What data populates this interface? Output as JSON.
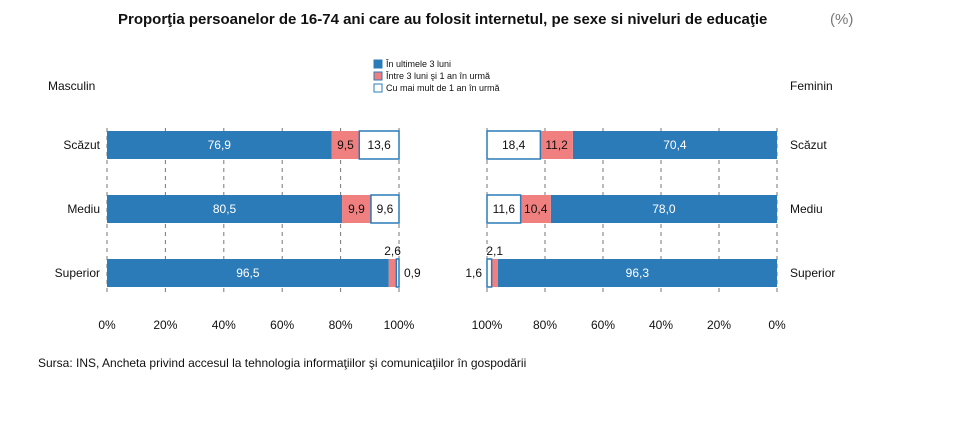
{
  "title": "Proporţia persoanelor de 16-74 ani care au folosit internetul, pe sexe si niveluri de educaţie",
  "unit": "(%)",
  "source": "Sursa: INS, Ancheta privind accesul la tehnologia informaţiilor şi comunicaţiilor în gospodării",
  "colors": {
    "last3": "#2b7bb9",
    "between": "#f07f7f",
    "over1": "#ffffff",
    "border": "#2b7bb9"
  },
  "chart_data": {
    "type": "bar",
    "orientation": "horizontal",
    "stacked": true,
    "title": "Proporţia persoanelor de 16-74 ani care au folosit internetul, pe sexe si niveluri de educaţie",
    "unit": "(%)",
    "categories": [
      "Scăzut",
      "Mediu",
      "Superior"
    ],
    "legend": {
      "placement": "top-center",
      "items": [
        "În ultimele 3 luni",
        "Între 3 luni şi 1 an în urmă",
        "Cu mai mult de 1 an în urmă"
      ]
    },
    "panels": [
      {
        "label": "Masculin",
        "direction": "left-to-right",
        "ticks": [
          "0%",
          "20%",
          "40%",
          "60%",
          "80%",
          "100%"
        ],
        "xlim": [
          0,
          100
        ],
        "series": [
          {
            "name": "În ultimele 3 luni",
            "values": [
              76.9,
              80.5,
              96.5
            ],
            "labels": [
              "76,9",
              "80,5",
              "96,5"
            ]
          },
          {
            "name": "Între 3 luni şi 1 an în urmă",
            "values": [
              9.5,
              9.9,
              2.6
            ],
            "labels": [
              "9,5",
              "9,9",
              "2,6"
            ]
          },
          {
            "name": "Cu mai mult de 1 an în urmă",
            "values": [
              13.6,
              9.6,
              0.9
            ],
            "labels": [
              "13,6",
              "9,6",
              "0,9"
            ]
          }
        ]
      },
      {
        "label": "Feminin",
        "direction": "right-to-left",
        "ticks": [
          "100%",
          "80%",
          "60%",
          "40%",
          "20%",
          "0%"
        ],
        "xlim": [
          0,
          100
        ],
        "series": [
          {
            "name": "În ultimele 3 luni",
            "values": [
              70.4,
              78.0,
              96.3
            ],
            "labels": [
              "70,4",
              "78,0",
              "96,3"
            ]
          },
          {
            "name": "Între 3 luni şi 1 an în urmă",
            "values": [
              11.2,
              10.4,
              2.1
            ],
            "labels": [
              "11,2",
              "10,4",
              "2,1"
            ]
          },
          {
            "name": "Cu mai mult de 1 an în urmă",
            "values": [
              18.4,
              11.6,
              1.6
            ],
            "labels": [
              "18,4",
              "11,6",
              "1,6"
            ]
          }
        ]
      }
    ],
    "grid": true
  }
}
